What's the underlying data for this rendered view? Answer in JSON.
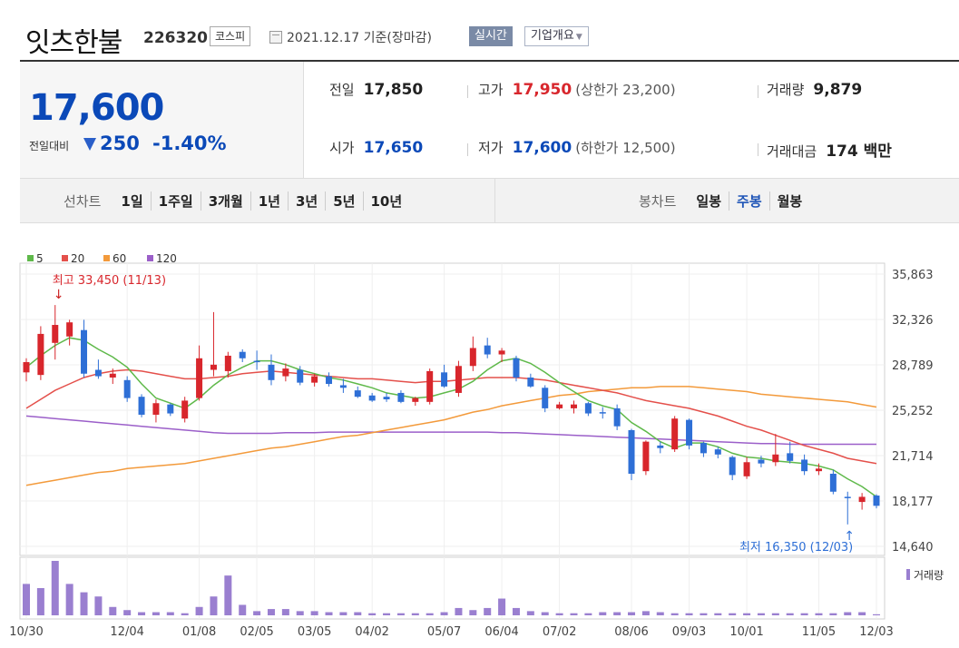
{
  "header": {
    "stock_name": "잇츠한불",
    "stock_code": "226320",
    "market": "코스피",
    "date_label": "2021.12.17 기준(장마감)",
    "realtime_label": "실시간",
    "overview_label": "기업개요",
    "calendar_icon": "calendar-icon",
    "dropdown_icon": "caret-down-icon"
  },
  "price": {
    "current": "17,600",
    "change_label": "전일대비",
    "change_icon": "down-triangle-icon",
    "change": "250",
    "change_rate": "-1.40%"
  },
  "stats": {
    "prev_label": "전일",
    "prev": "17,850",
    "high_label": "고가",
    "high": "17,950",
    "upper_limit": "(상한가 23,200)",
    "volume_label": "거래량",
    "volume": "9,879",
    "open_label": "시가",
    "open": "17,650",
    "low_label": "저가",
    "low": "17,600",
    "lower_limit": "(하한가 12,500)",
    "amount_label": "거래대금",
    "amount": "174 백만"
  },
  "periods": {
    "line_title": "선차트",
    "line_items": [
      "1일",
      "1주일",
      "3개월",
      "1년",
      "3년",
      "5년",
      "10년"
    ],
    "candle_title": "봉차트",
    "candle_items": [
      "일봉",
      "주봉",
      "월봉"
    ],
    "candle_active": "주봉"
  },
  "colors": {
    "up": "#d8262c",
    "down": "#2e6fd6",
    "ma5": "#5fb94a",
    "ma20": "#e4504b",
    "ma60": "#f39a3b",
    "ma120": "#9b5fc9",
    "volume": "#9a7fd0"
  },
  "chart_data": {
    "type": "candlestick",
    "legend": [
      "5",
      "20",
      "60",
      "120"
    ],
    "y_ticks": [
      "35,863",
      "32,326",
      "28,789",
      "25,252",
      "21,714",
      "18,177",
      "14,640"
    ],
    "ylim": [
      14640,
      35863
    ],
    "x_ticks": [
      "10/30",
      "12/04",
      "01/08",
      "02/05",
      "03/05",
      "04/02",
      "05/07",
      "06/04",
      "07/02",
      "08/06",
      "09/03",
      "10/01",
      "11/05",
      "12/03"
    ],
    "x_tick_index": [
      0,
      7,
      12,
      16,
      20,
      24,
      29,
      33,
      37,
      42,
      46,
      50,
      55,
      59
    ],
    "annotation_high": "최고 33,450 (11/13)",
    "annotation_low": "최저 16,350 (12/03)",
    "volume_label": "거래량",
    "candles": [
      {
        "o": 28200,
        "h": 29300,
        "l": 27500,
        "c": 29000
      },
      {
        "o": 28000,
        "h": 31800,
        "l": 27600,
        "c": 31200
      },
      {
        "o": 30500,
        "h": 33450,
        "l": 29200,
        "c": 31900
      },
      {
        "o": 31000,
        "h": 32300,
        "l": 30300,
        "c": 32100
      },
      {
        "o": 31500,
        "h": 32300,
        "l": 27800,
        "c": 28100
      },
      {
        "o": 28400,
        "h": 29200,
        "l": 27700,
        "c": 27900
      },
      {
        "o": 27800,
        "h": 28500,
        "l": 27300,
        "c": 28100
      },
      {
        "o": 27600,
        "h": 27900,
        "l": 25900,
        "c": 26200
      },
      {
        "o": 26300,
        "h": 26500,
        "l": 24700,
        "c": 24900
      },
      {
        "o": 24900,
        "h": 26100,
        "l": 24300,
        "c": 25800
      },
      {
        "o": 25700,
        "h": 25800,
        "l": 24800,
        "c": 25000
      },
      {
        "o": 24600,
        "h": 26300,
        "l": 24300,
        "c": 26000
      },
      {
        "o": 26200,
        "h": 30300,
        "l": 26000,
        "c": 29300
      },
      {
        "o": 28400,
        "h": 32900,
        "l": 27900,
        "c": 28800
      },
      {
        "o": 28300,
        "h": 29800,
        "l": 27800,
        "c": 29500
      },
      {
        "o": 29800,
        "h": 30000,
        "l": 29000,
        "c": 29300
      },
      {
        "o": 29100,
        "h": 29900,
        "l": 28400,
        "c": 29000
      },
      {
        "o": 28800,
        "h": 29600,
        "l": 27200,
        "c": 27600
      },
      {
        "o": 27900,
        "h": 28900,
        "l": 27500,
        "c": 28500
      },
      {
        "o": 28400,
        "h": 28700,
        "l": 27200,
        "c": 27400
      },
      {
        "o": 27400,
        "h": 28100,
        "l": 27100,
        "c": 27900
      },
      {
        "o": 27900,
        "h": 28200,
        "l": 27100,
        "c": 27300
      },
      {
        "o": 27200,
        "h": 27700,
        "l": 26600,
        "c": 27000
      },
      {
        "o": 26800,
        "h": 27100,
        "l": 26200,
        "c": 26300
      },
      {
        "o": 26400,
        "h": 26600,
        "l": 25900,
        "c": 26000
      },
      {
        "o": 26300,
        "h": 26600,
        "l": 25900,
        "c": 26100
      },
      {
        "o": 26600,
        "h": 26800,
        "l": 25800,
        "c": 25900
      },
      {
        "o": 25900,
        "h": 26300,
        "l": 25600,
        "c": 26200
      },
      {
        "o": 25900,
        "h": 28500,
        "l": 25700,
        "c": 28300
      },
      {
        "o": 28200,
        "h": 28800,
        "l": 27000,
        "c": 27100
      },
      {
        "o": 26600,
        "h": 29100,
        "l": 26300,
        "c": 28700
      },
      {
        "o": 28700,
        "h": 31000,
        "l": 28300,
        "c": 30100
      },
      {
        "o": 30300,
        "h": 30900,
        "l": 29300,
        "c": 29600
      },
      {
        "o": 29600,
        "h": 30100,
        "l": 29000,
        "c": 29900
      },
      {
        "o": 29300,
        "h": 29500,
        "l": 27500,
        "c": 27800
      },
      {
        "o": 27800,
        "h": 28100,
        "l": 27000,
        "c": 27100
      },
      {
        "o": 27000,
        "h": 27200,
        "l": 25100,
        "c": 25400
      },
      {
        "o": 25400,
        "h": 25900,
        "l": 25300,
        "c": 25700
      },
      {
        "o": 25400,
        "h": 26000,
        "l": 25000,
        "c": 25700
      },
      {
        "o": 25800,
        "h": 25900,
        "l": 24800,
        "c": 25000
      },
      {
        "o": 25100,
        "h": 25500,
        "l": 24600,
        "c": 25000
      },
      {
        "o": 25400,
        "h": 25700,
        "l": 23700,
        "c": 24000
      },
      {
        "o": 23700,
        "h": 23800,
        "l": 19800,
        "c": 20300
      },
      {
        "o": 20500,
        "h": 22900,
        "l": 20200,
        "c": 22800
      },
      {
        "o": 22500,
        "h": 22800,
        "l": 21900,
        "c": 22300
      },
      {
        "o": 22200,
        "h": 24800,
        "l": 22000,
        "c": 24600
      },
      {
        "o": 24500,
        "h": 24600,
        "l": 22200,
        "c": 22500
      },
      {
        "o": 22700,
        "h": 22800,
        "l": 21600,
        "c": 21900
      },
      {
        "o": 22200,
        "h": 22400,
        "l": 21500,
        "c": 21800
      },
      {
        "o": 21600,
        "h": 21700,
        "l": 19800,
        "c": 20200
      },
      {
        "o": 20100,
        "h": 21600,
        "l": 19900,
        "c": 21200
      },
      {
        "o": 21400,
        "h": 21700,
        "l": 20800,
        "c": 21100
      },
      {
        "o": 21200,
        "h": 23400,
        "l": 20900,
        "c": 21800
      },
      {
        "o": 21900,
        "h": 22800,
        "l": 21100,
        "c": 21300
      },
      {
        "o": 21400,
        "h": 21800,
        "l": 20200,
        "c": 20500
      },
      {
        "o": 20500,
        "h": 21100,
        "l": 20200,
        "c": 20700
      },
      {
        "o": 20300,
        "h": 20600,
        "l": 18700,
        "c": 18900
      },
      {
        "o": 18500,
        "h": 18900,
        "l": 16350,
        "c": 18400
      },
      {
        "o": 18100,
        "h": 18800,
        "l": 17500,
        "c": 18500
      },
      {
        "o": 18600,
        "h": 18700,
        "l": 17600,
        "c": 17800
      }
    ],
    "ma5": [
      28600,
      29500,
      30300,
      30900,
      30700,
      30000,
      29400,
      28600,
      27300,
      26200,
      25800,
      25400,
      26200,
      27200,
      28000,
      28600,
      29100,
      29100,
      28800,
      28400,
      28100,
      27800,
      27600,
      27300,
      27000,
      26600,
      26400,
      26200,
      26300,
      26600,
      26900,
      27500,
      28400,
      29100,
      29300,
      28900,
      28200,
      27400,
      26700,
      26000,
      25600,
      25300,
      24300,
      23600,
      22800,
      22300,
      22700,
      22700,
      22400,
      21900,
      21600,
      21500,
      21300,
      21200,
      21100,
      20900,
      20600,
      19900,
      19300,
      18500
    ],
    "ma20": [
      25400,
      26100,
      26800,
      27300,
      27800,
      28100,
      28300,
      28400,
      28300,
      28100,
      27900,
      27700,
      27700,
      27800,
      27900,
      28100,
      28200,
      28300,
      28200,
      28100,
      28000,
      27900,
      27800,
      27700,
      27700,
      27600,
      27500,
      27400,
      27500,
      27500,
      27600,
      27700,
      27800,
      27800,
      27800,
      27700,
      27600,
      27400,
      27200,
      27000,
      26800,
      26600,
      26300,
      26000,
      25800,
      25600,
      25400,
      25100,
      24800,
      24400,
      24000,
      23700,
      23300,
      22900,
      22500,
      22200,
      21900,
      21500,
      21300,
      21100
    ],
    "ma60": [
      19400,
      19600,
      19800,
      20000,
      20200,
      20400,
      20500,
      20700,
      20800,
      20900,
      21000,
      21100,
      21300,
      21500,
      21700,
      21900,
      22100,
      22300,
      22400,
      22600,
      22800,
      23000,
      23200,
      23300,
      23500,
      23700,
      23900,
      24100,
      24300,
      24500,
      24800,
      25100,
      25300,
      25600,
      25800,
      26000,
      26200,
      26400,
      26500,
      26700,
      26800,
      26900,
      27000,
      27000,
      27100,
      27100,
      27100,
      27000,
      26900,
      26800,
      26700,
      26500,
      26400,
      26300,
      26200,
      26100,
      26000,
      25900,
      25700,
      25500
    ],
    "ma120": [
      24800,
      24700,
      24600,
      24500,
      24400,
      24300,
      24200,
      24100,
      24000,
      23900,
      23800,
      23700,
      23600,
      23500,
      23450,
      23450,
      23450,
      23450,
      23500,
      23500,
      23500,
      23550,
      23550,
      23550,
      23550,
      23550,
      23550,
      23550,
      23550,
      23550,
      23550,
      23550,
      23550,
      23500,
      23500,
      23450,
      23400,
      23350,
      23300,
      23250,
      23200,
      23150,
      23100,
      23050,
      23000,
      22950,
      22900,
      22850,
      22800,
      22750,
      22700,
      22650,
      22650,
      22600,
      22600,
      22600,
      22600,
      22600,
      22600,
      22600
    ],
    "volume": [
      30,
      26,
      52,
      30,
      22,
      18,
      8,
      5,
      3,
      3,
      3,
      2,
      8,
      18,
      38,
      10,
      4,
      6,
      6,
      4,
      4,
      3,
      3,
      3,
      2,
      2,
      2,
      2,
      2,
      3,
      7,
      5,
      7,
      16,
      7,
      4,
      3,
      2,
      2,
      2,
      3,
      3,
      3,
      4,
      3,
      2,
      2,
      2,
      2,
      2,
      2,
      2,
      2,
      2,
      2,
      2,
      2,
      3,
      3,
      1
    ]
  }
}
